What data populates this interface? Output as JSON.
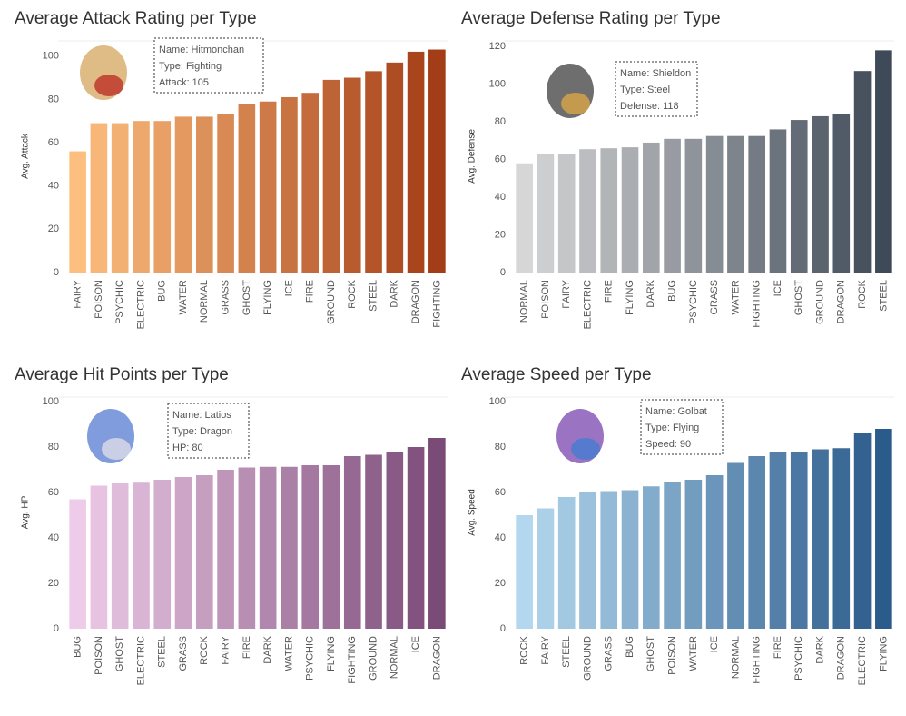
{
  "chart_data": [
    {
      "type": "bar",
      "title": "Average Attack Rating per Type",
      "y_label": "Avg. Attack",
      "categories": [
        "FAIRY",
        "POISON",
        "PSYCHIC",
        "ELECTRIC",
        "BUG",
        "WATER",
        "NORMAL",
        "GRASS",
        "GHOST",
        "FLYING",
        "ICE",
        "FIRE",
        "GROUND",
        "ROCK",
        "STEEL",
        "DARK",
        "DRAGON",
        "FIGHTING"
      ],
      "values": [
        56,
        69,
        69,
        70,
        70,
        72,
        72,
        73,
        78,
        79,
        81,
        83,
        89,
        90,
        93,
        97,
        102,
        103
      ],
      "color_range": [
        "#fdbf7f",
        "#a33d17"
      ],
      "ylim": [
        0,
        107
      ],
      "yticks": [
        0,
        20,
        40,
        60,
        80,
        100
      ],
      "tooltip": [
        "Name: Hitmonchan",
        "Type: Fighting",
        "Attack: 105"
      ]
    },
    {
      "type": "bar",
      "title": "Average Defense Rating per Type",
      "y_label": "Avg. Defense",
      "categories": [
        "NORMAL",
        "POISON",
        "FAIRY",
        "ELECTRIC",
        "FIRE",
        "FLYING",
        "DARK",
        "BUG",
        "PSYCHIC",
        "GRASS",
        "WATER",
        "FIGHTING",
        "ICE",
        "GHOST",
        "GROUND",
        "DRAGON",
        "ROCK",
        "STEEL"
      ],
      "values": [
        58,
        63,
        63,
        65.5,
        66,
        66.5,
        69,
        71,
        71,
        72.5,
        72.5,
        72.5,
        76,
        81,
        83,
        84,
        107,
        118
      ],
      "color_range": [
        "#d6d6d6",
        "#3f4a58"
      ],
      "ylim": [
        0,
        123
      ],
      "yticks": [
        0,
        20,
        40,
        60,
        80,
        100,
        120
      ],
      "tooltip": [
        "Name: Shieldon",
        "Type: Steel",
        "Defense: 118"
      ]
    },
    {
      "type": "bar",
      "title": "Average Hit Points per Type",
      "y_label": "Avg. HP",
      "categories": [
        "BUG",
        "POISON",
        "GHOST",
        "ELECTRIC",
        "STEEL",
        "GRASS",
        "ROCK",
        "FAIRY",
        "FIRE",
        "DARK",
        "WATER",
        "PSYCHIC",
        "FLYING",
        "FIGHTING",
        "GROUND",
        "NORMAL",
        "ICE",
        "DRAGON"
      ],
      "values": [
        57,
        63,
        64,
        64.3,
        65.6,
        66.8,
        67.6,
        70,
        71,
        71.3,
        71.3,
        72,
        72,
        76,
        76.6,
        78,
        80,
        84
      ],
      "color_range": [
        "#eecbe8",
        "#7b4b78"
      ],
      "ylim": [
        0,
        102
      ],
      "yticks": [
        0,
        20,
        40,
        60,
        80,
        100
      ],
      "tooltip": [
        "Name: Latios",
        "Type: Dragon",
        "HP: 80"
      ]
    },
    {
      "type": "bar",
      "title": "Average Speed per Type",
      "y_label": "Avg. Speed",
      "categories": [
        "ROCK",
        "FAIRY",
        "STEEL",
        "GROUND",
        "GRASS",
        "BUG",
        "GHOST",
        "POISON",
        "WATER",
        "ICE",
        "NORMAL",
        "FIGHTING",
        "FIRE",
        "PSYCHIC",
        "DARK",
        "DRAGON",
        "ELECTRIC",
        "FLYING"
      ],
      "values": [
        50,
        53,
        58,
        60,
        60.6,
        61,
        62.7,
        64.8,
        65.6,
        67.6,
        73,
        76,
        78,
        78,
        79,
        79.5,
        86,
        88
      ],
      "color_range": [
        "#b3d7ee",
        "#2b5b8b"
      ],
      "ylim": [
        0,
        102
      ],
      "yticks": [
        0,
        20,
        40,
        60,
        80,
        100
      ],
      "tooltip": [
        "Name: Golbat",
        "Type: Flying",
        "Speed: 90"
      ]
    }
  ]
}
